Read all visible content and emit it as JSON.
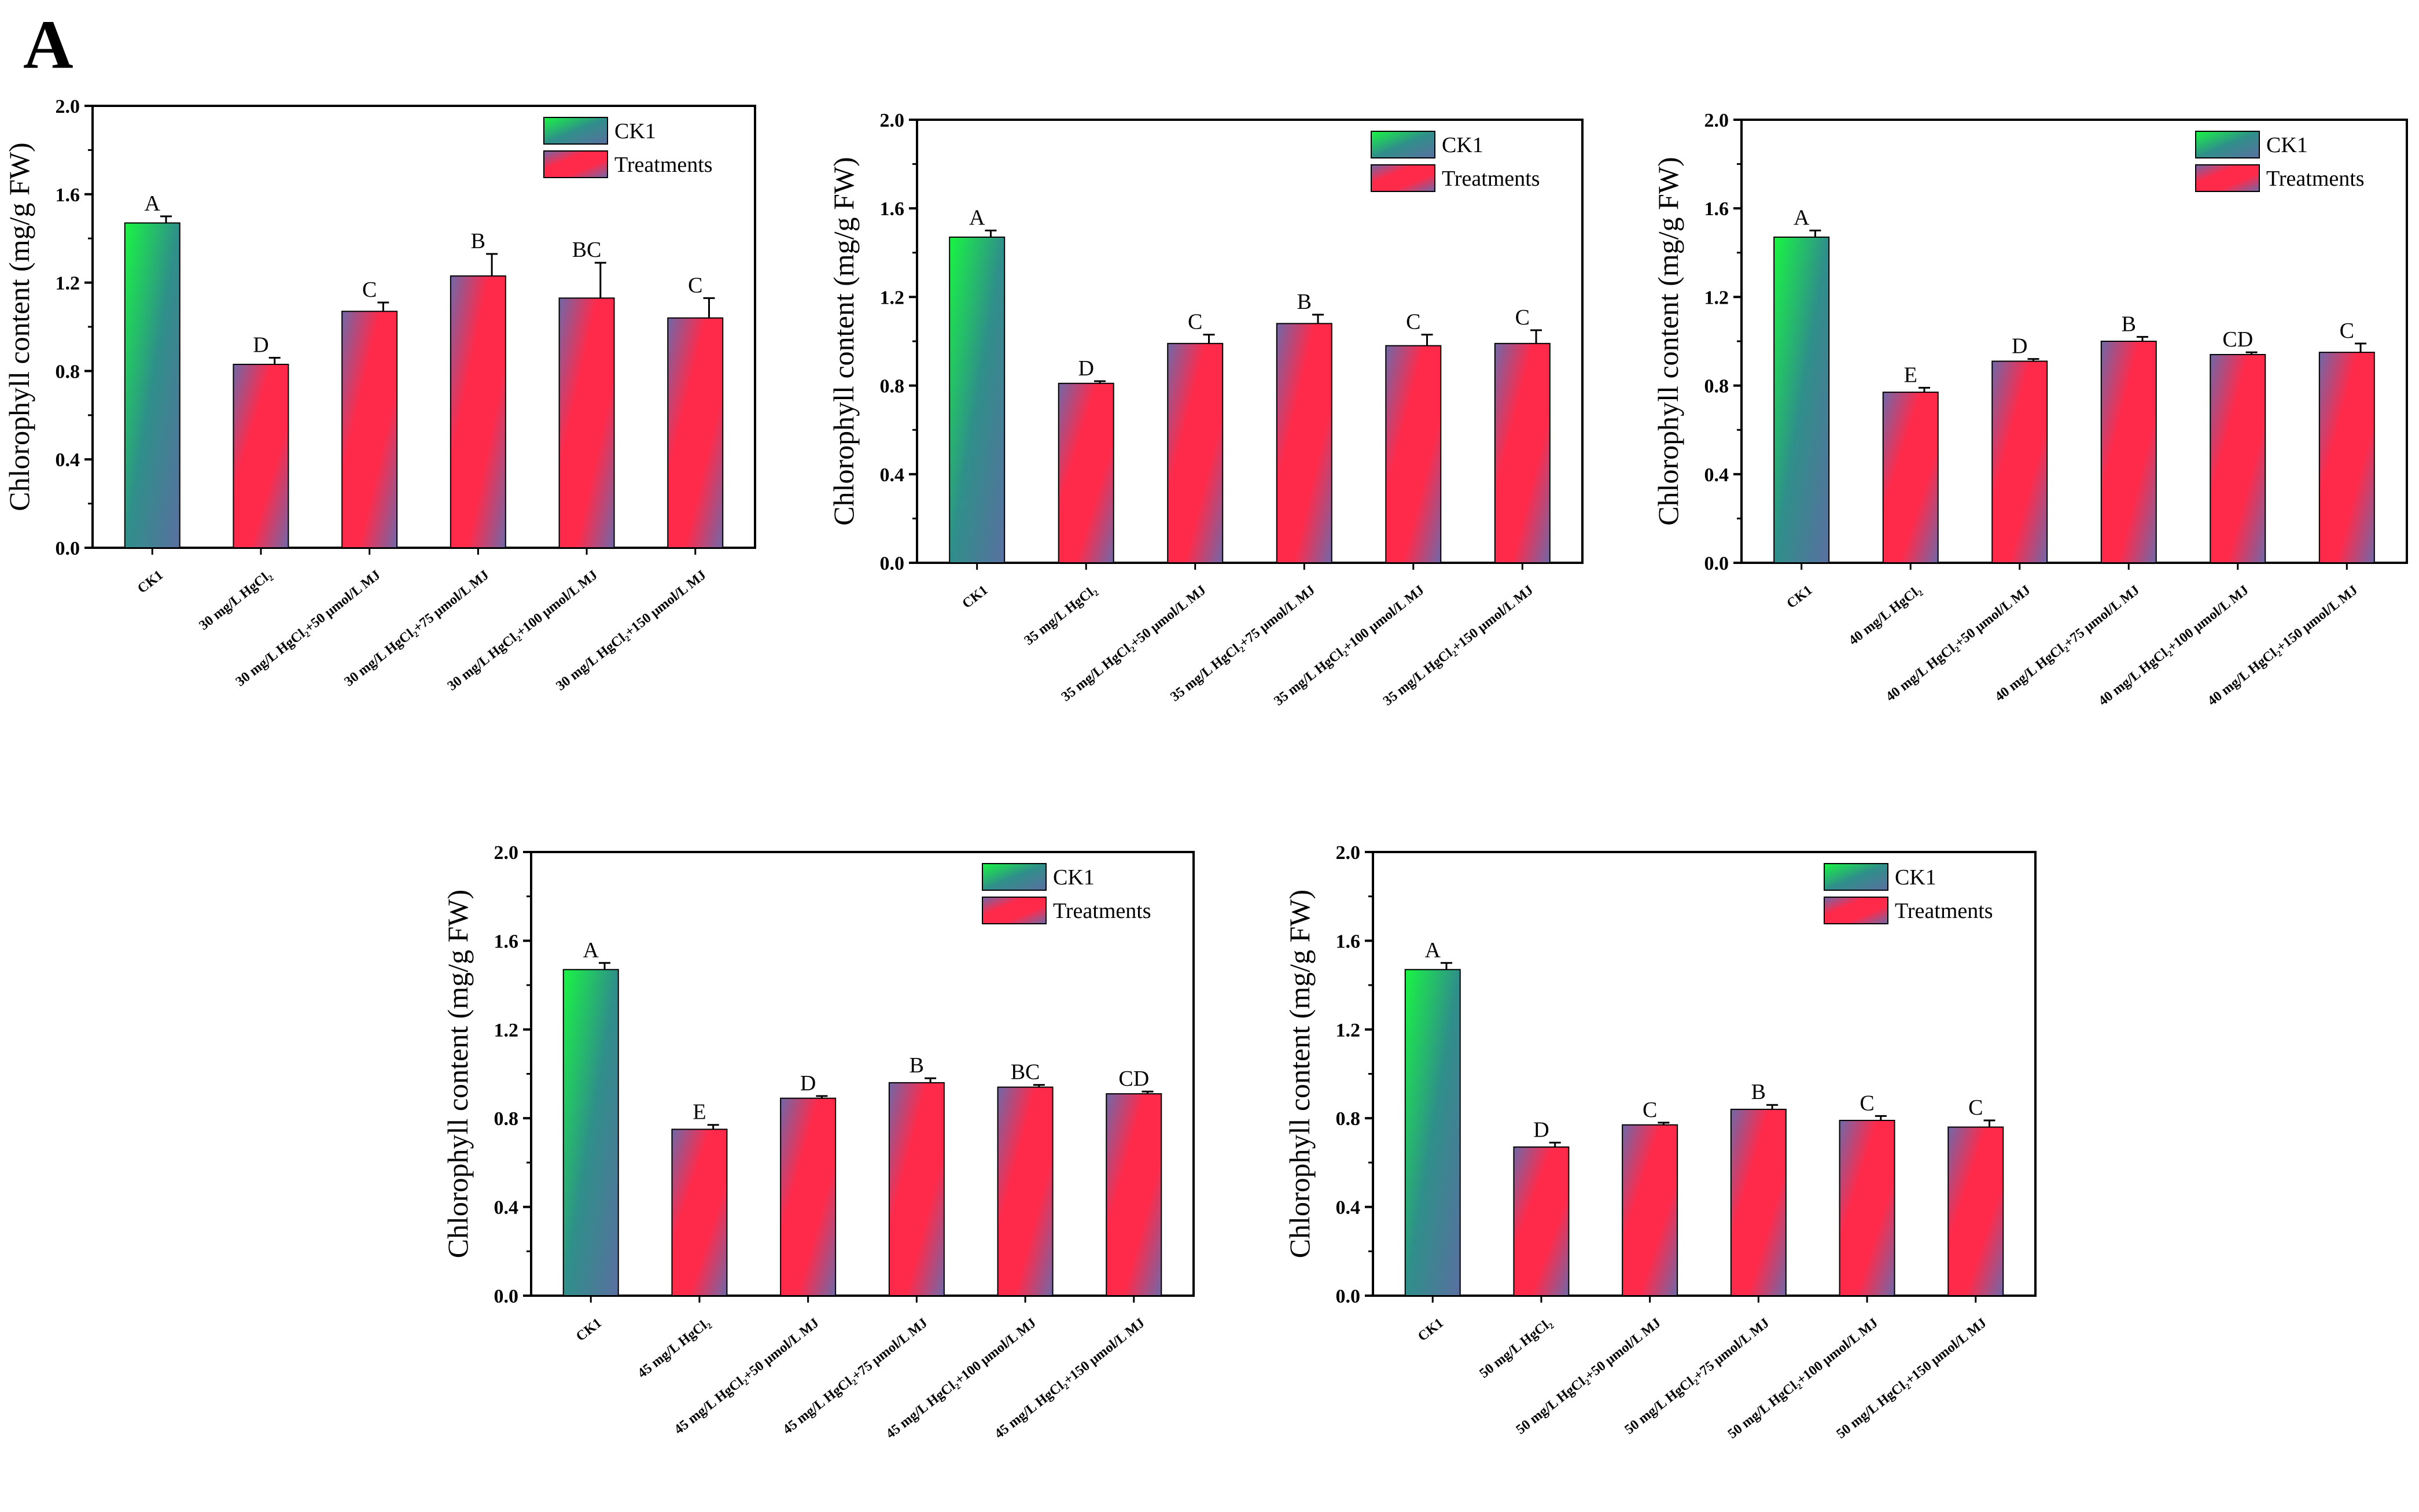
{
  "figure": {
    "panel_label": "A"
  },
  "colors": {
    "ck1_gradient": [
      "#19f542",
      "#2f8f8a",
      "#5a6fa0"
    ],
    "treat_gradient": [
      "#ff2a4a",
      "#b04a80",
      "#6a6aa8"
    ],
    "axis": "#000000"
  },
  "chart_data": [
    {
      "type": "bar",
      "ylabel": "Chlorophyll content (mg/g FW)",
      "ylim": [
        0,
        2.0
      ],
      "yticks": [
        "0.0",
        "0.4",
        "0.8",
        "1.2",
        "1.6",
        "2.0"
      ],
      "legend": [
        "CK1",
        "Treatments"
      ],
      "categories": [
        "CK1",
        "30 mg/L HgCl₂",
        "30 mg/L HgCl₂+50 μmol/L MJ",
        "30 mg/L HgCl₂+75 μmol/L MJ",
        "30 mg/L HgCl₂+100 μmol/L MJ",
        "30 mg/L HgCl₂+150 μmol/L MJ"
      ],
      "values": [
        1.47,
        0.83,
        1.07,
        1.23,
        1.13,
        1.04
      ],
      "errors": [
        0.03,
        0.03,
        0.04,
        0.1,
        0.16,
        0.09
      ],
      "letters": [
        "A",
        "D",
        "C",
        "B",
        "BC",
        "C"
      ]
    },
    {
      "type": "bar",
      "ylabel": "Chlorophyll content (mg/g FW)",
      "ylim": [
        0,
        2.0
      ],
      "yticks": [
        "0.0",
        "0.4",
        "0.8",
        "1.2",
        "1.6",
        "2.0"
      ],
      "legend": [
        "CK1",
        "Treatments"
      ],
      "categories": [
        "CK1",
        "35 mg/L HgCl₂",
        "35 mg/L HgCl₂+50 μmol/L MJ",
        "35 mg/L HgCl₂+75 μmol/L MJ",
        "35 mg/L HgCl₂+100 μmol/L MJ",
        "35 mg/L HgCl₂+150 μmol/L MJ"
      ],
      "values": [
        1.47,
        0.81,
        0.99,
        1.08,
        0.98,
        0.99
      ],
      "errors": [
        0.03,
        0.01,
        0.04,
        0.04,
        0.05,
        0.06
      ],
      "letters": [
        "A",
        "D",
        "C",
        "B",
        "C",
        "C"
      ]
    },
    {
      "type": "bar",
      "ylabel": "Chlorophyll content (mg/g FW)",
      "ylim": [
        0,
        2.0
      ],
      "yticks": [
        "0.0",
        "0.4",
        "0.8",
        "1.2",
        "1.6",
        "2.0"
      ],
      "legend": [
        "CK1",
        "Treatments"
      ],
      "categories": [
        "CK1",
        "40 mg/L HgCl₂",
        "40 mg/L HgCl₂+50 μmol/L MJ",
        "40 mg/L HgCl₂+75 μmol/L MJ",
        "40 mg/L HgCl₂+100 μmol/L MJ",
        "40 mg/L HgCl₂+150 μmol/L MJ"
      ],
      "values": [
        1.47,
        0.77,
        0.91,
        1.0,
        0.94,
        0.95
      ],
      "errors": [
        0.03,
        0.02,
        0.01,
        0.02,
        0.01,
        0.04
      ],
      "letters": [
        "A",
        "E",
        "D",
        "B",
        "CD",
        "C"
      ]
    },
    {
      "type": "bar",
      "ylabel": "Chlorophyll content (mg/g FW)",
      "ylim": [
        0,
        2.0
      ],
      "yticks": [
        "0.0",
        "0.4",
        "0.8",
        "1.2",
        "1.6",
        "2.0"
      ],
      "legend": [
        "CK1",
        "Treatments"
      ],
      "categories": [
        "CK1",
        "45 mg/L HgCl₂",
        "45 mg/L HgCl₂+50 μmol/L MJ",
        "45 mg/L HgCl₂+75 μmol/L MJ",
        "45 mg/L HgCl₂+100 μmol/L MJ",
        "45 mg/L HgCl₂+150 μmol/L MJ"
      ],
      "values": [
        1.47,
        0.75,
        0.89,
        0.96,
        0.94,
        0.91
      ],
      "errors": [
        0.03,
        0.02,
        0.01,
        0.02,
        0.01,
        0.01
      ],
      "letters": [
        "A",
        "E",
        "D",
        "B",
        "BC",
        "CD"
      ]
    },
    {
      "type": "bar",
      "ylabel": "Chlorophyll content (mg/g FW)",
      "ylim": [
        0,
        2.0
      ],
      "yticks": [
        "0.0",
        "0.4",
        "0.8",
        "1.2",
        "1.6",
        "2.0"
      ],
      "legend": [
        "CK1",
        "Treatments"
      ],
      "categories": [
        "CK1",
        "50 mg/L HgCl₂",
        "50 mg/L HgCl₂+50 μmol/L MJ",
        "50 mg/L HgCl₂+75 μmol/L MJ",
        "50 mg/L HgCl₂+100 μmol/L MJ",
        "50 mg/L HgCl₂+150 μmol/L MJ"
      ],
      "values": [
        1.47,
        0.67,
        0.77,
        0.84,
        0.79,
        0.76
      ],
      "errors": [
        0.03,
        0.02,
        0.01,
        0.02,
        0.02,
        0.03
      ],
      "letters": [
        "A",
        "D",
        "C",
        "B",
        "C",
        "C"
      ]
    }
  ]
}
